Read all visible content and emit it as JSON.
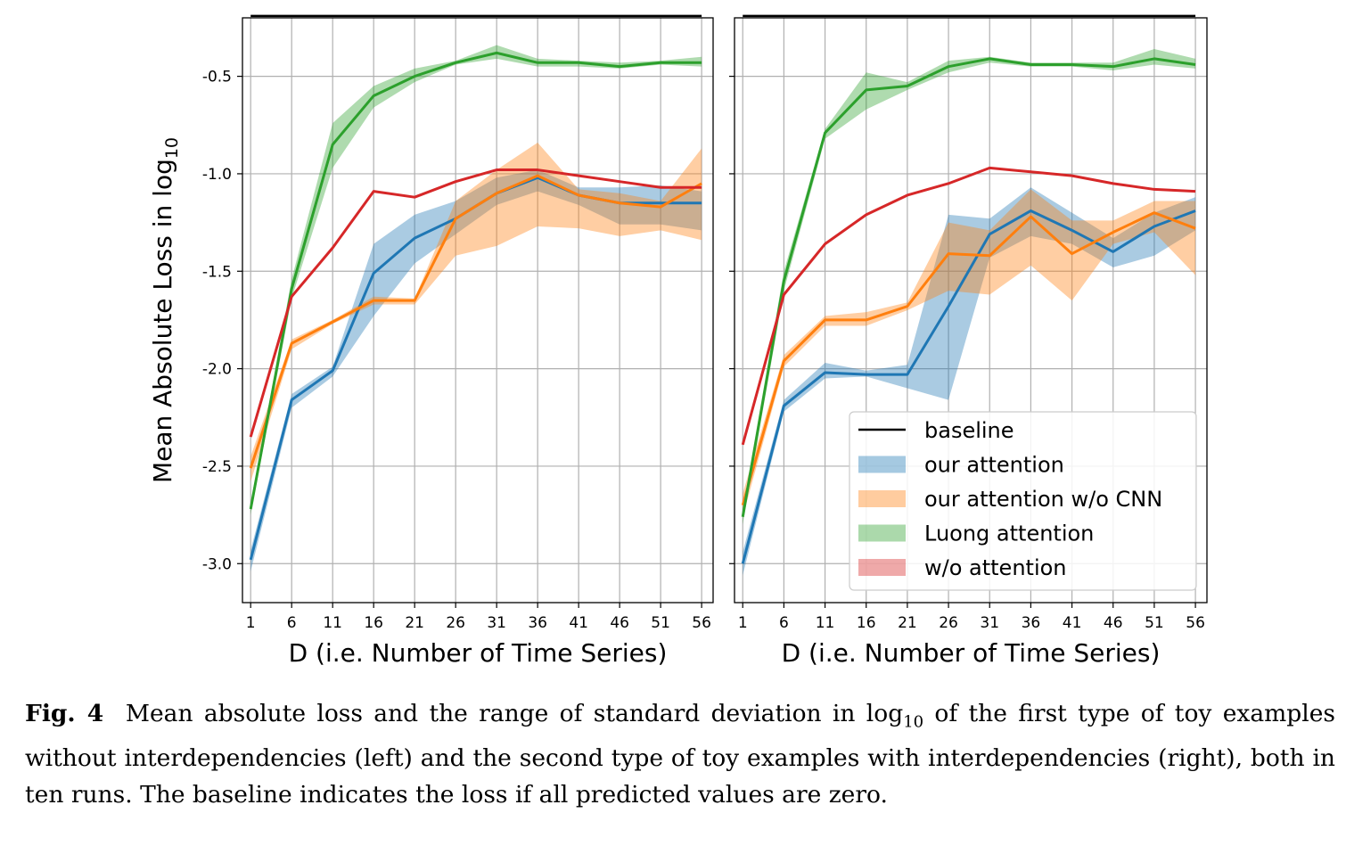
{
  "chart_data": [
    {
      "type": "line",
      "x": [
        1,
        6,
        11,
        16,
        21,
        26,
        31,
        36,
        41,
        46,
        51,
        56
      ],
      "xlabel": "D (i.e. Number of Time Series)",
      "ylabel": "Mean Absolute Loss in log",
      "ylabel_sub": "10",
      "ylim": [
        -3.2,
        -0.2
      ],
      "yticks": [
        "-0.5",
        "-1.0",
        "-1.5",
        "-2.0",
        "-2.5",
        "-3.0"
      ],
      "ytick_values": [
        -0.5,
        -1.0,
        -1.5,
        -2.0,
        -2.5,
        -3.0
      ],
      "xticks": [
        "1",
        "6",
        "11",
        "16",
        "21",
        "26",
        "31",
        "36",
        "41",
        "46",
        "51",
        "56"
      ],
      "grid": true,
      "series": [
        {
          "name": "baseline",
          "color": "#000000",
          "values": [
            -0.19,
            -0.19,
            -0.19,
            -0.19,
            -0.19,
            -0.19,
            -0.19,
            -0.19,
            -0.19,
            -0.19,
            -0.19,
            -0.19
          ]
        },
        {
          "name": "our attention",
          "color": "#1f77b4",
          "values": [
            -2.98,
            -2.16,
            -2.01,
            -1.51,
            -1.33,
            -1.23,
            -1.1,
            -1.02,
            -1.11,
            -1.15,
            -1.15,
            -1.15
          ],
          "upper": [
            -2.93,
            -2.13,
            -1.99,
            -1.36,
            -1.21,
            -1.14,
            -1.02,
            -0.98,
            -1.07,
            -1.07,
            -1.06,
            -1.09
          ],
          "lower": [
            -3.04,
            -2.2,
            -2.04,
            -1.73,
            -1.46,
            -1.31,
            -1.16,
            -1.09,
            -1.16,
            -1.26,
            -1.26,
            -1.29
          ]
        },
        {
          "name": "our attention w/o CNN",
          "color": "#ff7f0e",
          "values": [
            -2.51,
            -1.87,
            -1.76,
            -1.65,
            -1.65,
            -1.23,
            -1.1,
            -1.01,
            -1.11,
            -1.15,
            -1.17,
            -1.05
          ],
          "upper": [
            -2.45,
            -1.85,
            -1.75,
            -1.63,
            -1.64,
            -1.14,
            -0.98,
            -0.84,
            -1.08,
            -1.1,
            -1.14,
            -0.87
          ],
          "lower": [
            -2.58,
            -1.9,
            -1.77,
            -1.67,
            -1.67,
            -1.42,
            -1.37,
            -1.27,
            -1.28,
            -1.32,
            -1.29,
            -1.34
          ]
        },
        {
          "name": "Luong attention",
          "color": "#2ca02c",
          "values": [
            -2.72,
            -1.59,
            -0.85,
            -0.6,
            -0.5,
            -0.43,
            -0.38,
            -0.43,
            -0.43,
            -0.45,
            -0.43,
            -0.43
          ],
          "upper": [
            -2.69,
            -1.54,
            -0.74,
            -0.55,
            -0.46,
            -0.42,
            -0.34,
            -0.41,
            -0.42,
            -0.43,
            -0.42,
            -0.4
          ],
          "lower": [
            -2.75,
            -1.64,
            -0.97,
            -0.66,
            -0.53,
            -0.44,
            -0.41,
            -0.45,
            -0.45,
            -0.46,
            -0.44,
            -0.45
          ]
        },
        {
          "name": "w/o attention",
          "color": "#d62728",
          "values": [
            -2.35,
            -1.63,
            -1.38,
            -1.09,
            -1.12,
            -1.04,
            -0.98,
            -0.98,
            -1.01,
            -1.04,
            -1.07,
            -1.07
          ]
        }
      ]
    },
    {
      "type": "line",
      "x": [
        1,
        6,
        11,
        16,
        21,
        26,
        31,
        36,
        41,
        46,
        51,
        56
      ],
      "xlabel": "D (i.e. Number of Time Series)",
      "ylim": [
        -3.2,
        -0.2
      ],
      "xticks": [
        "1",
        "6",
        "11",
        "16",
        "21",
        "26",
        "31",
        "36",
        "41",
        "46",
        "51",
        "56"
      ],
      "grid": true,
      "legend_position": "lower right",
      "series": [
        {
          "name": "baseline",
          "color": "#000000",
          "values": [
            -0.19,
            -0.19,
            -0.19,
            -0.19,
            -0.19,
            -0.19,
            -0.19,
            -0.19,
            -0.19,
            -0.19,
            -0.19,
            -0.19
          ]
        },
        {
          "name": "our attention",
          "color": "#1f77b4",
          "values": [
            -3.0,
            -2.19,
            -2.02,
            -2.03,
            -2.03,
            -1.68,
            -1.31,
            -1.19,
            -1.29,
            -1.4,
            -1.27,
            -1.19
          ],
          "upper": [
            -2.94,
            -2.16,
            -1.97,
            -2.01,
            -1.98,
            -1.21,
            -1.23,
            -1.07,
            -1.2,
            -1.33,
            -1.2,
            -1.12
          ],
          "lower": [
            -3.06,
            -2.22,
            -2.05,
            -2.04,
            -2.1,
            -2.16,
            -1.43,
            -1.32,
            -1.36,
            -1.48,
            -1.42,
            -1.29
          ]
        },
        {
          "name": "our attention w/o CNN",
          "color": "#ff7f0e",
          "values": [
            -2.7,
            -1.96,
            -1.75,
            -1.75,
            -1.68,
            -1.41,
            -1.42,
            -1.22,
            -1.41,
            -1.3,
            -1.2,
            -1.28
          ],
          "upper": [
            -2.64,
            -1.93,
            -1.73,
            -1.71,
            -1.66,
            -1.25,
            -1.29,
            -1.08,
            -1.24,
            -1.24,
            -1.14,
            -1.14
          ],
          "lower": [
            -2.76,
            -1.99,
            -1.78,
            -1.78,
            -1.7,
            -1.6,
            -1.62,
            -1.47,
            -1.65,
            -1.36,
            -1.3,
            -1.52
          ]
        },
        {
          "name": "Luong attention",
          "color": "#2ca02c",
          "values": [
            -2.76,
            -1.55,
            -0.79,
            -0.57,
            -0.55,
            -0.45,
            -0.41,
            -0.44,
            -0.44,
            -0.45,
            -0.41,
            -0.44
          ],
          "upper": [
            -2.72,
            -1.5,
            -0.77,
            -0.48,
            -0.53,
            -0.42,
            -0.4,
            -0.43,
            -0.43,
            -0.43,
            -0.36,
            -0.41
          ],
          "lower": [
            -2.8,
            -1.6,
            -0.82,
            -0.67,
            -0.57,
            -0.48,
            -0.43,
            -0.45,
            -0.45,
            -0.47,
            -0.44,
            -0.46
          ]
        },
        {
          "name": "w/o attention",
          "color": "#d62728",
          "values": [
            -2.39,
            -1.62,
            -1.36,
            -1.21,
            -1.11,
            -1.05,
            -0.97,
            -0.99,
            -1.01,
            -1.05,
            -1.08,
            -1.09
          ]
        }
      ]
    }
  ],
  "caption": {
    "label": "Fig. 4",
    "text_before": "Mean absolute loss and the range of standard deviation in log",
    "sub": "10",
    "text_after": " of the first type of toy examples without interdependencies (left) and the second type of toy examples with interdependencies (right), both in ten runs. The baseline indicates the loss if all predicted values are zero."
  }
}
